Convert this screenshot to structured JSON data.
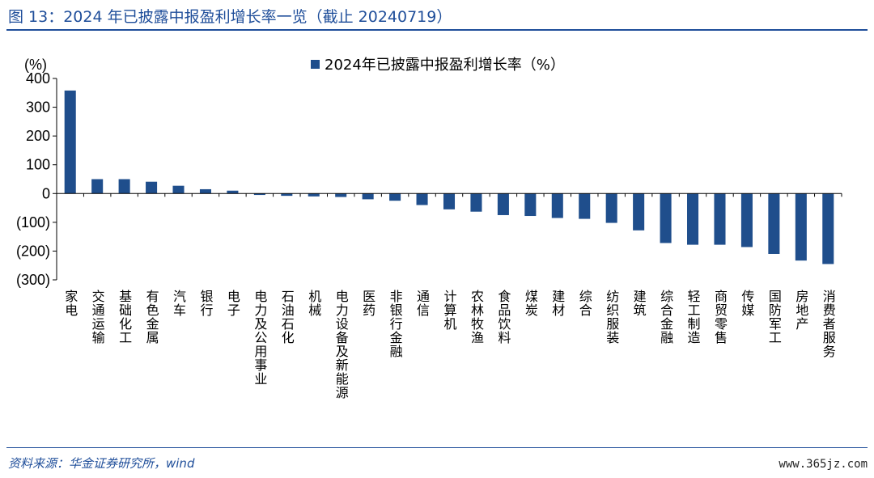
{
  "page": {
    "title": "图 13：2024 年已披露中报盈利增长率一览（截止 20240719）",
    "source": "资料来源：华金证券研究所，wind",
    "watermark": "www.365jz.com"
  },
  "chart_data": {
    "type": "bar",
    "title": "",
    "xlabel": "",
    "ylabel": "(%)",
    "ylim": [
      -300,
      400
    ],
    "yticks": [
      400,
      300,
      200,
      100,
      0,
      -100,
      -200,
      -300
    ],
    "ytick_labels": [
      "400",
      "300",
      "200",
      "100",
      "0",
      "(100)",
      "(200)",
      "(300)"
    ],
    "legend_position": "top-center",
    "series": [
      {
        "name": "2024年已披露中报盈利增长率（%）",
        "color": "#1f4e8c",
        "values": [
          358,
          50,
          50,
          41,
          27,
          15,
          10,
          -5,
          -8,
          -10,
          -12,
          -20,
          -25,
          -40,
          -55,
          -63,
          -75,
          -78,
          -85,
          -88,
          -102,
          -128,
          -172,
          -178,
          -178,
          -186,
          -210,
          -233,
          -245
        ]
      }
    ],
    "categories": [
      "家电",
      "交通运输",
      "基础化工",
      "有色金属",
      "汽车",
      "银行",
      "电子",
      "电力及公用事业",
      "石油石化",
      "机械",
      "电力设备及新能源",
      "医药",
      "非银行金融",
      "通信",
      "计算机",
      "农林牧渔",
      "食品饮料",
      "煤炭",
      "建材",
      "综合",
      "纺织服装",
      "建筑",
      "综合金融",
      "轻工制造",
      "商贸零售",
      "传媒",
      "国防军工",
      "房地产",
      "消费者服务"
    ]
  }
}
